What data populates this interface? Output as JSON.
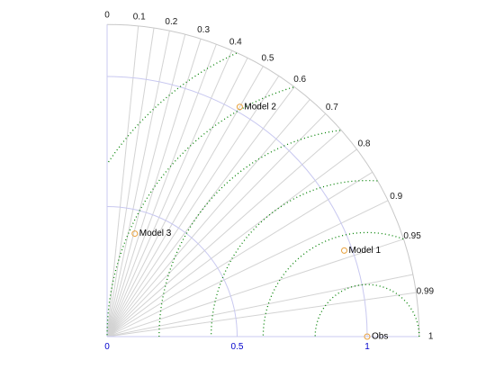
{
  "chart_data": {
    "type": "scatter",
    "subtype": "taylor-diagram",
    "title": "",
    "std_axis": {
      "range": [
        0,
        1.2
      ],
      "tick_values": [
        0,
        0.5,
        1
      ],
      "tick_labels": [
        "0",
        "0.5",
        "1"
      ],
      "label_color": "#0000cc"
    },
    "correlation_axis": {
      "tick_values": [
        0,
        0.1,
        0.2,
        0.3,
        0.4,
        0.5,
        0.6,
        0.7,
        0.8,
        0.9,
        0.95,
        0.99,
        1
      ],
      "tick_labels": [
        "0",
        "0.1",
        "0.2",
        "0.3",
        "0.4",
        "0.5",
        "0.6",
        "0.7",
        "0.8",
        "0.9",
        "0.95",
        "0.99",
        "1"
      ]
    },
    "rms_contours": [
      0.2,
      0.4,
      0.6,
      0.8,
      1.0,
      1.2
    ],
    "grid": true,
    "points": [
      {
        "name": "Obs",
        "std": 1.0,
        "corr": 1.0
      },
      {
        "name": "Model 1",
        "std": 0.97,
        "corr": 0.94
      },
      {
        "name": "Model 2",
        "std": 1.02,
        "corr": 0.5
      },
      {
        "name": "Model 3",
        "std": 0.41,
        "corr": 0.26
      }
    ],
    "colors": {
      "marker": "#e8a13c",
      "rms_contour": "#008000",
      "std_arc": "#c8c8f0",
      "corr_lines": "#d3d3d3",
      "outer_arc": "#c8c8c8"
    }
  }
}
